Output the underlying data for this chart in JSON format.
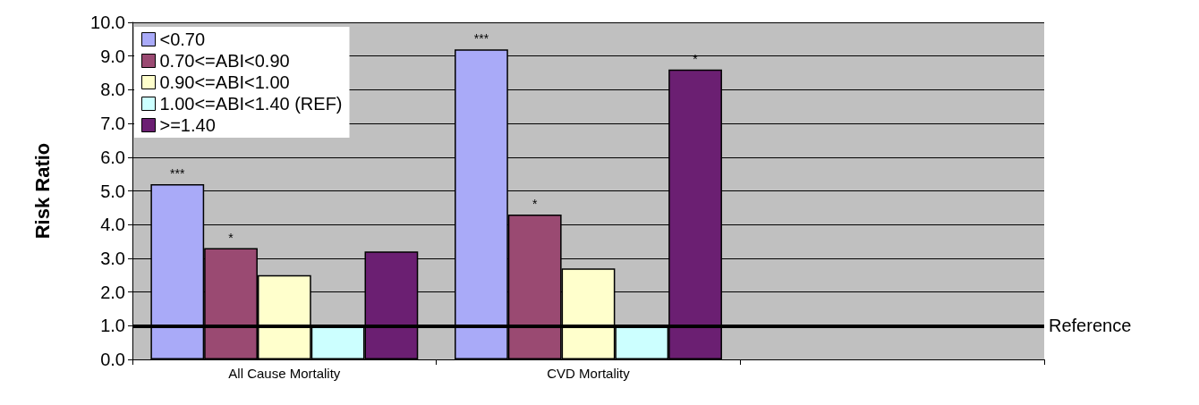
{
  "chart_data": {
    "type": "bar",
    "ylabel": "Risk Ratio",
    "categories": [
      "All Cause Mortality",
      "CVD Mortality",
      null
    ],
    "series": [
      {
        "name": "<0.70",
        "color": "#a9aaf8",
        "values": [
          5.2,
          9.2,
          null
        ],
        "value_labels": [
          "***",
          "***",
          null
        ]
      },
      {
        "name": "0.70<=ABI<0.90",
        "color": "#9a4a72",
        "values": [
          3.3,
          4.3,
          null
        ],
        "value_labels": [
          "*",
          "*",
          null
        ]
      },
      {
        "name": "0.90<=ABI<1.00",
        "color": "#ffffcc",
        "values": [
          2.5,
          2.7,
          null
        ]
      },
      {
        "name": "1.00<=ABI<1.40 (REF)",
        "color": "#ccffff",
        "values": [
          1.0,
          1.0,
          null
        ]
      },
      {
        "name": ">=1.40",
        "color": "#6b1f72",
        "values": [
          3.2,
          8.6,
          null
        ],
        "value_labels": [
          null,
          "*",
          null
        ]
      }
    ],
    "ylim": [
      0,
      10
    ],
    "yticks": [
      {
        "value": 0,
        "label": "0.0"
      },
      {
        "value": 1,
        "label": "1.0"
      },
      {
        "value": 2,
        "label": "2.0"
      },
      {
        "value": 3,
        "label": "3.0"
      },
      {
        "value": 4,
        "label": "4.0"
      },
      {
        "value": 5,
        "label": "5.0"
      },
      {
        "value": 6,
        "label": "6.0"
      },
      {
        "value": 7,
        "label": "7.0"
      },
      {
        "value": 8,
        "label": "8.0"
      },
      {
        "value": 9,
        "label": "9.0"
      },
      {
        "value": 10,
        "label": "10.0"
      }
    ],
    "ref_lines": [
      {
        "axis": "y",
        "value": 1,
        "label": "Reference",
        "color": "#000000"
      }
    ],
    "grid": "y",
    "legend": "top left"
  }
}
